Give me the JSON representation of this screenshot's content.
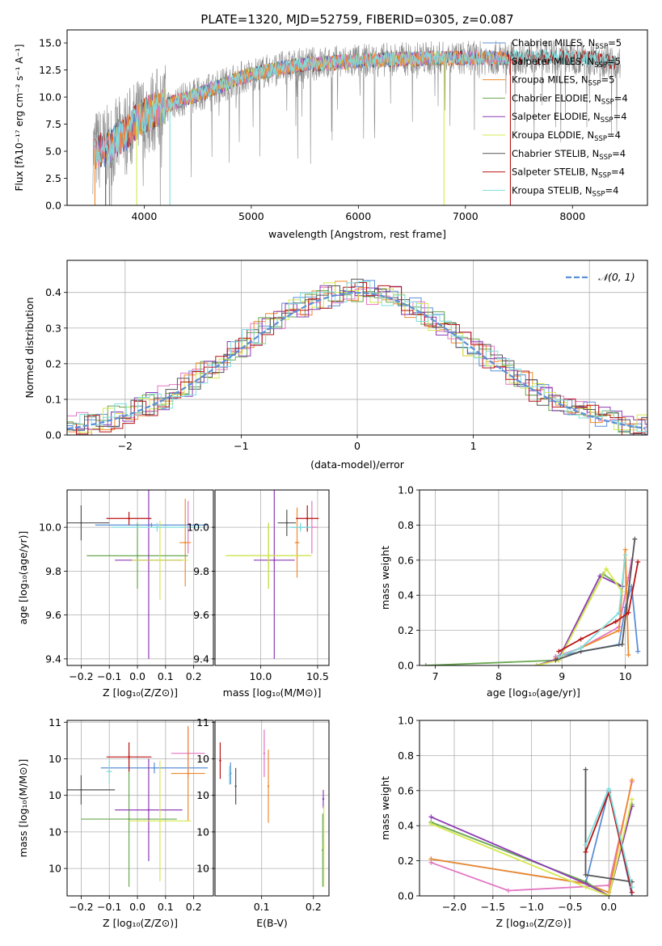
{
  "figure_title": "PLATE=1320, MJD=52759, FIBERID=0305, z=0.087",
  "colors": {
    "Chabrier MILES": "#5b8fd6",
    "Salpeter MILES": "#e377c2",
    "Kroupa MILES": "#f08a2e",
    "Chabrier ELODIE": "#6aa84f",
    "Salpeter ELODIE": "#8e3bb5",
    "Kroupa ELODIE": "#d6e84d",
    "Chabrier STELIB": "#555555",
    "Salpeter STELIB": "#b81414",
    "Kroupa STELIB": "#7fdede",
    "normal": "#5b8fd6"
  },
  "chart_data": [
    {
      "id": "spectrum",
      "type": "line",
      "title": "PLATE=1320, MJD=52759, FIBERID=0305, z=0.087",
      "xlabel": "wavelength [Angstrom, rest frame]",
      "ylabel": "Flux [fλ10⁻¹⁷ erg cm⁻² s⁻¹ A⁻¹]",
      "xlim": [
        3280,
        8700
      ],
      "ylim": [
        0,
        16.2
      ],
      "xticks": [
        4000,
        5000,
        6000,
        7000,
        8000
      ],
      "yticks": [
        0.0,
        2.5,
        5.0,
        7.5,
        10.0,
        12.5,
        15.0
      ],
      "grid": false,
      "legend_position": "right",
      "legend": [
        {
          "label": "Chabrier MILES, N",
          "sub": "SSP",
          "suffix": "=5"
        },
        {
          "label": "Salpeter MILES, N",
          "sub": "SSP",
          "suffix": "=5"
        },
        {
          "label": "Kroupa MILES, N",
          "sub": "SSP",
          "suffix": "=5"
        },
        {
          "label": "Chabrier ELODIE, N",
          "sub": "SSP",
          "suffix": "=4"
        },
        {
          "label": "Salpeter ELODIE, N",
          "sub": "SSP",
          "suffix": "=4"
        },
        {
          "label": "Kroupa ELODIE, N",
          "sub": "SSP",
          "suffix": "=4"
        },
        {
          "label": "Chabrier STELIB, N",
          "sub": "SSP",
          "suffix": "=4"
        },
        {
          "label": "Salpeter STELIB, N",
          "sub": "SSP",
          "suffix": "=4"
        },
        {
          "label": "Kroupa STELIB, N",
          "sub": "SSP",
          "suffix": "=4"
        }
      ],
      "continuum": [
        [
          3500,
          5.0
        ],
        [
          3650,
          5.3
        ],
        [
          3800,
          6.4
        ],
        [
          3950,
          7.9
        ],
        [
          4100,
          8.8
        ],
        [
          4300,
          9.6
        ],
        [
          4500,
          10.2
        ],
        [
          4700,
          11.0
        ],
        [
          4900,
          11.8
        ],
        [
          5100,
          12.3
        ],
        [
          5300,
          12.7
        ],
        [
          5500,
          13.0
        ],
        [
          5800,
          13.2
        ],
        [
          6100,
          13.4
        ],
        [
          6400,
          13.5
        ],
        [
          6700,
          13.6
        ],
        [
          7000,
          13.6
        ],
        [
          7300,
          13.6
        ],
        [
          7600,
          13.7
        ],
        [
          7900,
          13.7
        ],
        [
          8200,
          13.6
        ],
        [
          8450,
          13.1
        ]
      ],
      "series_ranges": {
        "Chabrier MILES": [
          3540,
          7400
        ],
        "Salpeter MILES": [
          3540,
          7400
        ],
        "Kroupa MILES": [
          3540,
          7400
        ],
        "Chabrier ELODIE": [
          3900,
          6800
        ],
        "Salpeter ELODIE": [
          3900,
          6800
        ],
        "Kroupa ELODIE": [
          3900,
          6800
        ],
        "Chabrier STELIB": [
          3540,
          8400
        ],
        "Salpeter STELIB": [
          3540,
          8400
        ],
        "Kroupa STELIB": [
          3540,
          8400
        ],
        "data": [
          3520,
          8450
        ]
      }
    },
    {
      "id": "residuals",
      "type": "histogram",
      "xlabel": "(data-model)/error",
      "ylabel": "Normed distribution",
      "xlim": [
        -2.5,
        2.5
      ],
      "ylim": [
        0,
        0.49
      ],
      "xticks": [
        -2,
        -1,
        0,
        1,
        2
      ],
      "yticks": [
        0.0,
        0.1,
        0.2,
        0.3,
        0.4
      ],
      "grid": true,
      "legend_position": "top-right",
      "normal_label": "𝒩(0, 1)",
      "bin_width": 0.1
    },
    {
      "id": "age_vs_Z",
      "type": "scatter",
      "xlabel": "Z [log₁₀(Z/Z⊙)]",
      "ylabel": "age  [log₁₀(age/yr)]",
      "xlim": [
        -0.25,
        0.27
      ],
      "ylim": [
        9.37,
        10.17
      ],
      "xticks": [
        -0.2,
        -0.1,
        0.0,
        0.1,
        0.2
      ],
      "yticks": [
        9.4,
        9.6,
        9.8,
        10.0
      ],
      "grid": true,
      "points": [
        {
          "model": "Chabrier MILES",
          "x": 0.05,
          "xerr": 0.2,
          "y": 10.01,
          "yerr": 0.01
        },
        {
          "model": "Salpeter MILES",
          "x": 0.18,
          "xerr": 0.02,
          "y": 10.0,
          "yerr": 0.12
        },
        {
          "model": "Kroupa MILES",
          "x": 0.17,
          "xerr": 0.02,
          "y": 9.93,
          "yerr": 0.2
        },
        {
          "model": "Chabrier ELODIE",
          "x": 0.0,
          "xerr": 0.18,
          "y": 9.87,
          "yerr": 0.15
        },
        {
          "model": "Salpeter ELODIE",
          "x": 0.04,
          "xerr": 0.12,
          "y": 9.85,
          "yerr": 0.45
        },
        {
          "model": "Kroupa ELODIE",
          "x": 0.08,
          "xerr": 0.1,
          "y": 9.85,
          "yerr": 0.18
        },
        {
          "model": "Chabrier STELIB",
          "x": -0.2,
          "xerr": 0.1,
          "y": 10.02,
          "yerr": 0.08
        },
        {
          "model": "Salpeter STELIB",
          "x": -0.03,
          "xerr": 0.08,
          "y": 10.04,
          "yerr": 0.03
        },
        {
          "model": "Kroupa STELIB",
          "x": 0.07,
          "xerr": 0.16,
          "y": 10.0,
          "yerr": 0.02
        }
      ]
    },
    {
      "id": "age_vs_mass",
      "type": "scatter",
      "xlabel": "mass [log₁₀(M/M⊙)]",
      "ylabel": "",
      "xlim": [
        9.6,
        10.6
      ],
      "ylim": [
        9.37,
        10.17
      ],
      "xticks": [
        10.0,
        10.5
      ],
      "yticks": [
        9.4,
        9.6,
        9.8,
        10.0
      ],
      "grid": true,
      "points": [
        {
          "model": "Chabrier MILES",
          "x": 10.35,
          "xerr": 0.08,
          "y": 10.0,
          "yerr": 0.01
        },
        {
          "model": "Salpeter MILES",
          "x": 10.45,
          "xerr": 0.05,
          "y": 10.0,
          "yerr": 0.12
        },
        {
          "model": "Kroupa MILES",
          "x": 10.32,
          "xerr": 0.02,
          "y": 9.93,
          "yerr": 0.16
        },
        {
          "model": "Chabrier ELODIE",
          "x": 10.07,
          "xerr": 0.36,
          "y": 9.87,
          "yerr": 0.15
        },
        {
          "model": "Salpeter ELODIE",
          "x": 10.12,
          "xerr": 0.18,
          "y": 9.85,
          "yerr": 0.45
        },
        {
          "model": "Kroupa ELODIE",
          "x": 10.07,
          "xerr": 0.38,
          "y": 9.87,
          "yerr": 0.15
        },
        {
          "model": "Chabrier STELIB",
          "x": 10.23,
          "xerr": 0.08,
          "y": 10.02,
          "yerr": 0.06
        },
        {
          "model": "Salpeter STELIB",
          "x": 10.41,
          "xerr": 0.1,
          "y": 10.04,
          "yerr": 0.06
        },
        {
          "model": "Kroupa STELIB",
          "x": 10.35,
          "xerr": 0.1,
          "y": 10.0,
          "yerr": 0.02
        }
      ]
    },
    {
      "id": "weight_vs_age",
      "type": "line",
      "xlabel": "age  [log₁₀(age/yr)]",
      "ylabel": "mass weight",
      "xlim": [
        6.75,
        10.35
      ],
      "ylim": [
        0.0,
        1.0
      ],
      "xticks": [
        7,
        8,
        9,
        10
      ],
      "yticks": [
        0.0,
        0.2,
        0.4,
        0.6,
        0.8,
        1.0
      ],
      "grid": true,
      "series": [
        {
          "model": "Chabrier MILES",
          "x": [
            8.9,
            9.9,
            10.0,
            10.1,
            10.2
          ],
          "y": [
            0.05,
            0.12,
            0.33,
            0.45,
            0.08
          ]
        },
        {
          "model": "Salpeter MILES",
          "x": [
            8.9,
            9.3,
            9.9,
            10.05,
            10.1
          ],
          "y": [
            0.05,
            0.1,
            0.22,
            0.5,
            0.6
          ]
        },
        {
          "model": "Kroupa MILES",
          "x": [
            8.9,
            9.3,
            9.9,
            10.0,
            10.05
          ],
          "y": [
            0.04,
            0.1,
            0.2,
            0.66,
            0.06
          ]
        },
        {
          "model": "Chabrier ELODIE",
          "x": [
            6.85,
            8.95,
            9.65,
            9.95
          ],
          "y": [
            0.0,
            0.03,
            0.52,
            0.45
          ]
        },
        {
          "model": "Salpeter ELODIE",
          "x": [
            8.6,
            8.95,
            9.6,
            9.95
          ],
          "y": [
            0.0,
            0.04,
            0.51,
            0.45
          ]
        },
        {
          "model": "Kroupa ELODIE",
          "x": [
            8.6,
            8.95,
            9.7,
            9.95
          ],
          "y": [
            0.0,
            0.03,
            0.55,
            0.42
          ]
        },
        {
          "model": "Chabrier STELIB",
          "x": [
            8.9,
            9.3,
            9.95,
            10.15
          ],
          "y": [
            0.03,
            0.08,
            0.12,
            0.72
          ]
        },
        {
          "model": "Salpeter STELIB",
          "x": [
            8.95,
            9.3,
            9.85,
            10.05,
            10.2
          ],
          "y": [
            0.08,
            0.15,
            0.25,
            0.3,
            0.59
          ]
        },
        {
          "model": "Kroupa STELIB",
          "x": [
            8.95,
            9.3,
            9.9,
            10.0
          ],
          "y": [
            0.05,
            0.1,
            0.3,
            0.63
          ]
        }
      ]
    },
    {
      "id": "mass_vs_Z",
      "type": "scatter",
      "xlabel": "Z [log₁₀(Z/Z⊙)]",
      "ylabel": "mass [log₁₀(M/M⊙)]",
      "xlim": [
        -0.25,
        0.27
      ],
      "ylim": [
        9.65,
        10.61
      ],
      "xticks": [
        -0.2,
        -0.1,
        0.0,
        0.1,
        0.2
      ],
      "yticks": [
        9.8,
        10.0,
        10.2,
        10.4,
        10.6
      ],
      "grid": true,
      "points": [
        {
          "model": "Chabrier MILES",
          "x": 0.06,
          "xerr": 0.19,
          "y": 10.35,
          "yerr": 0.03
        },
        {
          "model": "Salpeter MILES",
          "x": 0.18,
          "xerr": 0.06,
          "y": 10.43,
          "yerr": 0.14
        },
        {
          "model": "Kroupa MILES",
          "x": 0.18,
          "xerr": 0.06,
          "y": 10.32,
          "yerr": 0.26
        },
        {
          "model": "Chabrier ELODIE",
          "x": -0.03,
          "xerr": 0.17,
          "y": 10.07,
          "yerr": 0.37
        },
        {
          "model": "Salpeter ELODIE",
          "x": 0.04,
          "xerr": 0.12,
          "y": 10.12,
          "yerr": 0.28
        },
        {
          "model": "Kroupa ELODIE",
          "x": 0.08,
          "xerr": 0.11,
          "y": 10.06,
          "yerr": 0.33
        },
        {
          "model": "Chabrier STELIB",
          "x": -0.2,
          "xerr": 0.12,
          "y": 10.23,
          "yerr": 0.08
        },
        {
          "model": "Salpeter STELIB",
          "x": -0.03,
          "xerr": 0.08,
          "y": 10.41,
          "yerr": 0.08
        },
        {
          "model": "Kroupa STELIB",
          "x": -0.1,
          "xerr": 0.01,
          "y": 10.33,
          "yerr": 0.07
        }
      ]
    },
    {
      "id": "mass_vs_ebv",
      "type": "scatter",
      "xlabel": "E(B-V)",
      "ylabel": "",
      "xlim": [
        0.01,
        0.23
      ],
      "ylim": [
        9.65,
        10.61
      ],
      "xticks": [
        0.1,
        0.2
      ],
      "yticks": [
        9.8,
        10.0,
        10.2,
        10.4,
        10.6
      ],
      "grid": true,
      "points": [
        {
          "model": "Chabrier MILES",
          "x": 0.04,
          "xerr": 0,
          "y": 10.32,
          "yerr": 0.06
        },
        {
          "model": "Salpeter MILES",
          "x": 0.105,
          "xerr": 0,
          "y": 10.43,
          "yerr": 0.13
        },
        {
          "model": "Kroupa MILES",
          "x": 0.113,
          "xerr": 0,
          "y": 10.25,
          "yerr": 0.2
        },
        {
          "model": "Chabrier ELODIE",
          "x": 0.218,
          "xerr": 0,
          "y": 9.9,
          "yerr": 0.2
        },
        {
          "model": "Salpeter ELODIE",
          "x": 0.219,
          "xerr": 0,
          "y": 10.18,
          "yerr": 0.05
        },
        {
          "model": "Kroupa ELODIE",
          "x": 0.22,
          "xerr": 0,
          "y": 9.92,
          "yerr": 0.22
        },
        {
          "model": "Chabrier STELIB",
          "x": 0.05,
          "xerr": 0,
          "y": 10.25,
          "yerr": 0.1
        },
        {
          "model": "Salpeter STELIB",
          "x": 0.02,
          "xerr": 0,
          "y": 10.39,
          "yerr": 0.1
        },
        {
          "model": "Kroupa STELIB",
          "x": 0.038,
          "xerr": 0,
          "y": 10.31,
          "yerr": 0.05
        }
      ]
    },
    {
      "id": "weight_vs_Z",
      "type": "line",
      "xlabel": "Z [log₁₀(Z/Z⊙)]",
      "ylabel": "mass weight",
      "xlim": [
        -2.45,
        0.5
      ],
      "ylim": [
        0.0,
        1.0
      ],
      "xticks": [
        -2.0,
        -1.5,
        -1.0,
        -0.5,
        0.0
      ],
      "yticks": [
        0.0,
        0.2,
        0.4,
        0.6,
        0.8,
        1.0
      ],
      "grid": true,
      "series": [
        {
          "model": "Chabrier MILES",
          "x": [
            -2.3,
            -0.3,
            0.0,
            0.3
          ],
          "y": [
            0.21,
            0.07,
            0.6,
            0.0
          ]
        },
        {
          "model": "Salpeter MILES",
          "x": [
            -2.3,
            -1.3,
            0.0,
            0.3
          ],
          "y": [
            0.19,
            0.03,
            0.06,
            0.65
          ]
        },
        {
          "model": "Kroupa MILES",
          "x": [
            -2.3,
            -0.3,
            0.0,
            0.3
          ],
          "y": [
            0.21,
            0.07,
            0.02,
            0.66
          ]
        },
        {
          "model": "Chabrier ELODIE",
          "x": [
            -2.3,
            -0.3,
            0.0,
            0.3
          ],
          "y": [
            0.42,
            0.08,
            0.0,
            0.52
          ]
        },
        {
          "model": "Salpeter ELODIE",
          "x": [
            -2.3,
            -0.3,
            0.0,
            0.3
          ],
          "y": [
            0.45,
            0.07,
            0.0,
            0.51
          ]
        },
        {
          "model": "Kroupa ELODIE",
          "x": [
            -2.3,
            -0.3,
            0.0,
            0.3
          ],
          "y": [
            0.41,
            0.05,
            0.0,
            0.55
          ]
        },
        {
          "model": "Chabrier STELIB",
          "x": [
            -0.3,
            -0.3,
            0.3
          ],
          "y": [
            0.72,
            0.12,
            0.08
          ]
        },
        {
          "model": "Salpeter STELIB",
          "x": [
            -0.3,
            0.0,
            0.3
          ],
          "y": [
            0.25,
            0.59,
            0.02
          ]
        },
        {
          "model": "Kroupa STELIB",
          "x": [
            -0.3,
            0.0,
            0.3
          ],
          "y": [
            0.29,
            0.61,
            0.05
          ]
        }
      ]
    }
  ]
}
